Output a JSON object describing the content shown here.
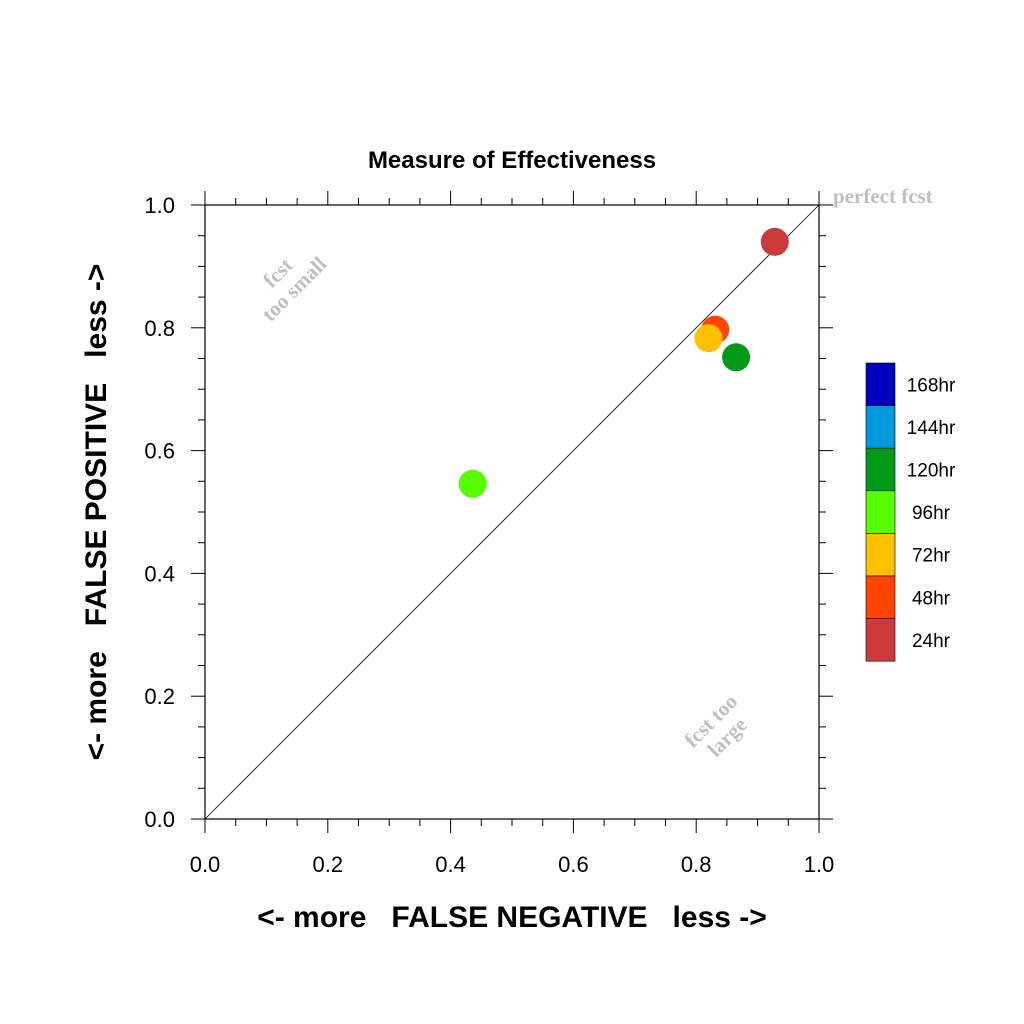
{
  "chart_data": {
    "type": "scatter",
    "title": "Measure of Effectiveness",
    "xlabel": "<- more   FALSE NEGATIVE   less ->",
    "ylabel": "<- more   FALSE POSITIVE   less ->",
    "xlim": [
      0,
      1
    ],
    "ylim": [
      0,
      1
    ],
    "x_ticks": [
      "0.0",
      "0.2",
      "0.4",
      "0.6",
      "0.8",
      "1.0"
    ],
    "y_ticks": [
      "0.0",
      "0.2",
      "0.4",
      "0.6",
      "0.8",
      "1.0"
    ],
    "grid": false,
    "diagonal_reference_line": true,
    "annotations": {
      "perfect": "perfect fcst",
      "too_small_1": "fcst",
      "too_small_2": "too small",
      "too_large_1": "fcst too",
      "too_large_2": "large"
    },
    "legend_position": "right",
    "legend": [
      {
        "name": "168hr",
        "color": "#0000c0"
      },
      {
        "name": "144hr",
        "color": "#0099dd"
      },
      {
        "name": "120hr",
        "color": "#009a19"
      },
      {
        "name": "96hr",
        "color": "#55ff00"
      },
      {
        "name": "72hr",
        "color": "#ffc000"
      },
      {
        "name": "48hr",
        "color": "#ff4500"
      },
      {
        "name": "24hr",
        "color": "#cc3a3a"
      }
    ],
    "points": [
      {
        "series": "24hr",
        "x": 0.928,
        "y": 0.94,
        "color": "#cc3a3a"
      },
      {
        "series": "48hr",
        "x": 0.831,
        "y": 0.797,
        "color": "#ff4500"
      },
      {
        "series": "120hr",
        "x": 0.865,
        "y": 0.752,
        "color": "#009a19"
      },
      {
        "series": "72hr",
        "x": 0.82,
        "y": 0.783,
        "color": "#ffc000"
      },
      {
        "series": "96hr",
        "x": 0.436,
        "y": 0.546,
        "color": "#55ff00"
      }
    ]
  }
}
